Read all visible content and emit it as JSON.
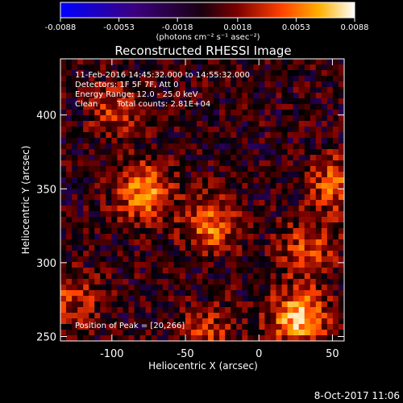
{
  "chart_data": {
    "type": "heatmap",
    "title": "Reconstructed RHESSI Image",
    "xlabel": "Heliocentric X (arcsec)",
    "ylabel": "Heliocentric Y (arcsec)",
    "xlim": [
      -135,
      58
    ],
    "ylim": [
      247,
      438
    ],
    "x_ticks": [
      -100,
      -50,
      0,
      50
    ],
    "y_ticks": [
      250,
      300,
      350,
      400
    ],
    "grid": false,
    "colorbar": {
      "min": -0.0088,
      "max": 0.0088,
      "ticks": [
        -0.0088,
        -0.0053,
        -0.0018,
        0.0018,
        0.0053,
        0.0088
      ],
      "tick_labels": [
        "-0.0088",
        "-0.0053",
        "-0.0018",
        "0.0018",
        "0.0053",
        "0.0088"
      ],
      "unit_label": "(photons cm⁻² s⁻¹ asec⁻²)",
      "colors": [
        "#0000ff",
        "#3b0080",
        "#000000",
        "#7a0000",
        "#ff4000",
        "#ffb000",
        "#ffffff"
      ]
    },
    "sources": [
      {
        "x": -78,
        "y": 348,
        "value": 0.0072
      },
      {
        "x": -33,
        "y": 326,
        "value": 0.0062
      },
      {
        "x": -96,
        "y": 405,
        "value": 0.004
      },
      {
        "x": 27,
        "y": 263,
        "value": 0.0088
      },
      {
        "x": 33,
        "y": 309,
        "value": 0.0045
      },
      {
        "x": 52,
        "y": 353,
        "value": 0.0055
      },
      {
        "x": -128,
        "y": 276,
        "value": 0.004
      },
      {
        "x": -35,
        "y": 252,
        "value": 0.0035
      }
    ],
    "peak": [
      20,
      266
    ],
    "annotations": [
      "11-Feb-2016 14:45:32.000 to 14:55:32.000",
      "Detectors: 1F 5F 7F, Att 0",
      "Energy Range: 12.0 - 25.0 keV",
      "Clean",
      "Total counts: 2.81E+04",
      "Position of Peak = [20,266]"
    ]
  },
  "footer": {
    "timestamp": "8-Oct-2017 11:06"
  }
}
